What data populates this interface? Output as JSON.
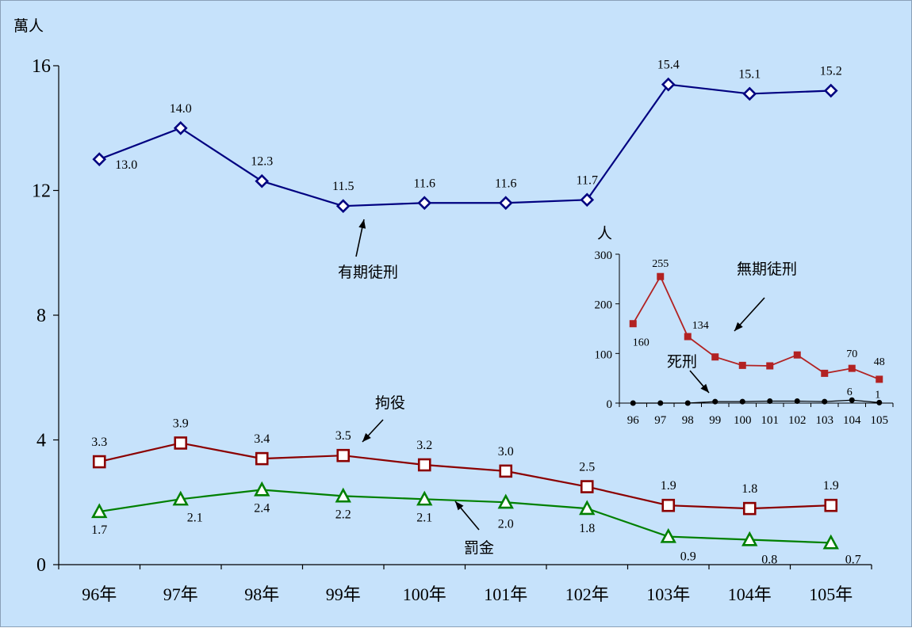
{
  "chart_data": [
    {
      "type": "line",
      "title": "",
      "unit_label": "萬人",
      "xlabel": "",
      "ylabel": "",
      "ylim": [
        0,
        16
      ],
      "yticks": [
        0,
        4,
        8,
        12,
        16
      ],
      "categories": [
        "96年",
        "97年",
        "98年",
        "99年",
        "100年",
        "101年",
        "102年",
        "103年",
        "104年",
        "105年"
      ],
      "legend": "none (lines labeled directly with arrows)",
      "grid": false,
      "series": [
        {
          "name": "有期徒刑",
          "color": "#000080",
          "marker": "diamond",
          "values": [
            13.0,
            14.0,
            12.3,
            11.5,
            11.6,
            11.6,
            11.7,
            15.4,
            15.1,
            15.2
          ],
          "labels": [
            "13.0",
            "14.0",
            "12.3",
            "11.5",
            "11.6",
            "11.6",
            "11.7",
            "15.4",
            "15.1",
            "15.2"
          ]
        },
        {
          "name": "拘役",
          "color": "#8b0000",
          "marker": "square",
          "values": [
            3.3,
            3.9,
            3.4,
            3.5,
            3.2,
            3.0,
            2.5,
            1.9,
            1.8,
            1.9
          ],
          "labels": [
            "3.3",
            "3.9",
            "3.4",
            "3.5",
            "3.2",
            "3.0",
            "2.5",
            "1.9",
            "1.8",
            "1.9"
          ]
        },
        {
          "name": "罰金",
          "color": "#008000",
          "marker": "triangle",
          "values": [
            1.7,
            2.1,
            2.4,
            2.2,
            2.1,
            2.0,
            1.8,
            0.9,
            0.8,
            0.7
          ],
          "labels": [
            "1.7",
            "2.1",
            "2.4",
            "2.2",
            "2.1",
            "2.0",
            "1.8",
            "0.9",
            "0.8",
            "0.7"
          ]
        }
      ]
    },
    {
      "type": "line",
      "title": "",
      "unit_label": "人",
      "xlabel": "",
      "ylabel": "",
      "ylim": [
        0,
        300
      ],
      "yticks": [
        0,
        100,
        200,
        300
      ],
      "categories": [
        "96",
        "97",
        "98",
        "99",
        "100",
        "101",
        "102",
        "103",
        "104",
        "105"
      ],
      "legend": "none (lines labeled directly with arrows)",
      "grid": false,
      "series": [
        {
          "name": "無期徒刑",
          "color": "#b22222",
          "marker": "square",
          "values": [
            160,
            255,
            134,
            93,
            76,
            75,
            97,
            60,
            70,
            48
          ],
          "labels": [
            "160",
            "255",
            "134",
            "",
            "",
            "",
            "",
            "",
            "70",
            "48"
          ]
        },
        {
          "name": "死刑",
          "color": "#000000",
          "marker": "circle",
          "values": [
            0,
            0,
            0,
            3,
            3,
            4,
            4,
            3,
            6,
            1
          ],
          "labels": [
            "",
            "",
            "",
            "",
            "",
            "",
            "",
            "",
            "6",
            "1"
          ]
        }
      ]
    }
  ]
}
